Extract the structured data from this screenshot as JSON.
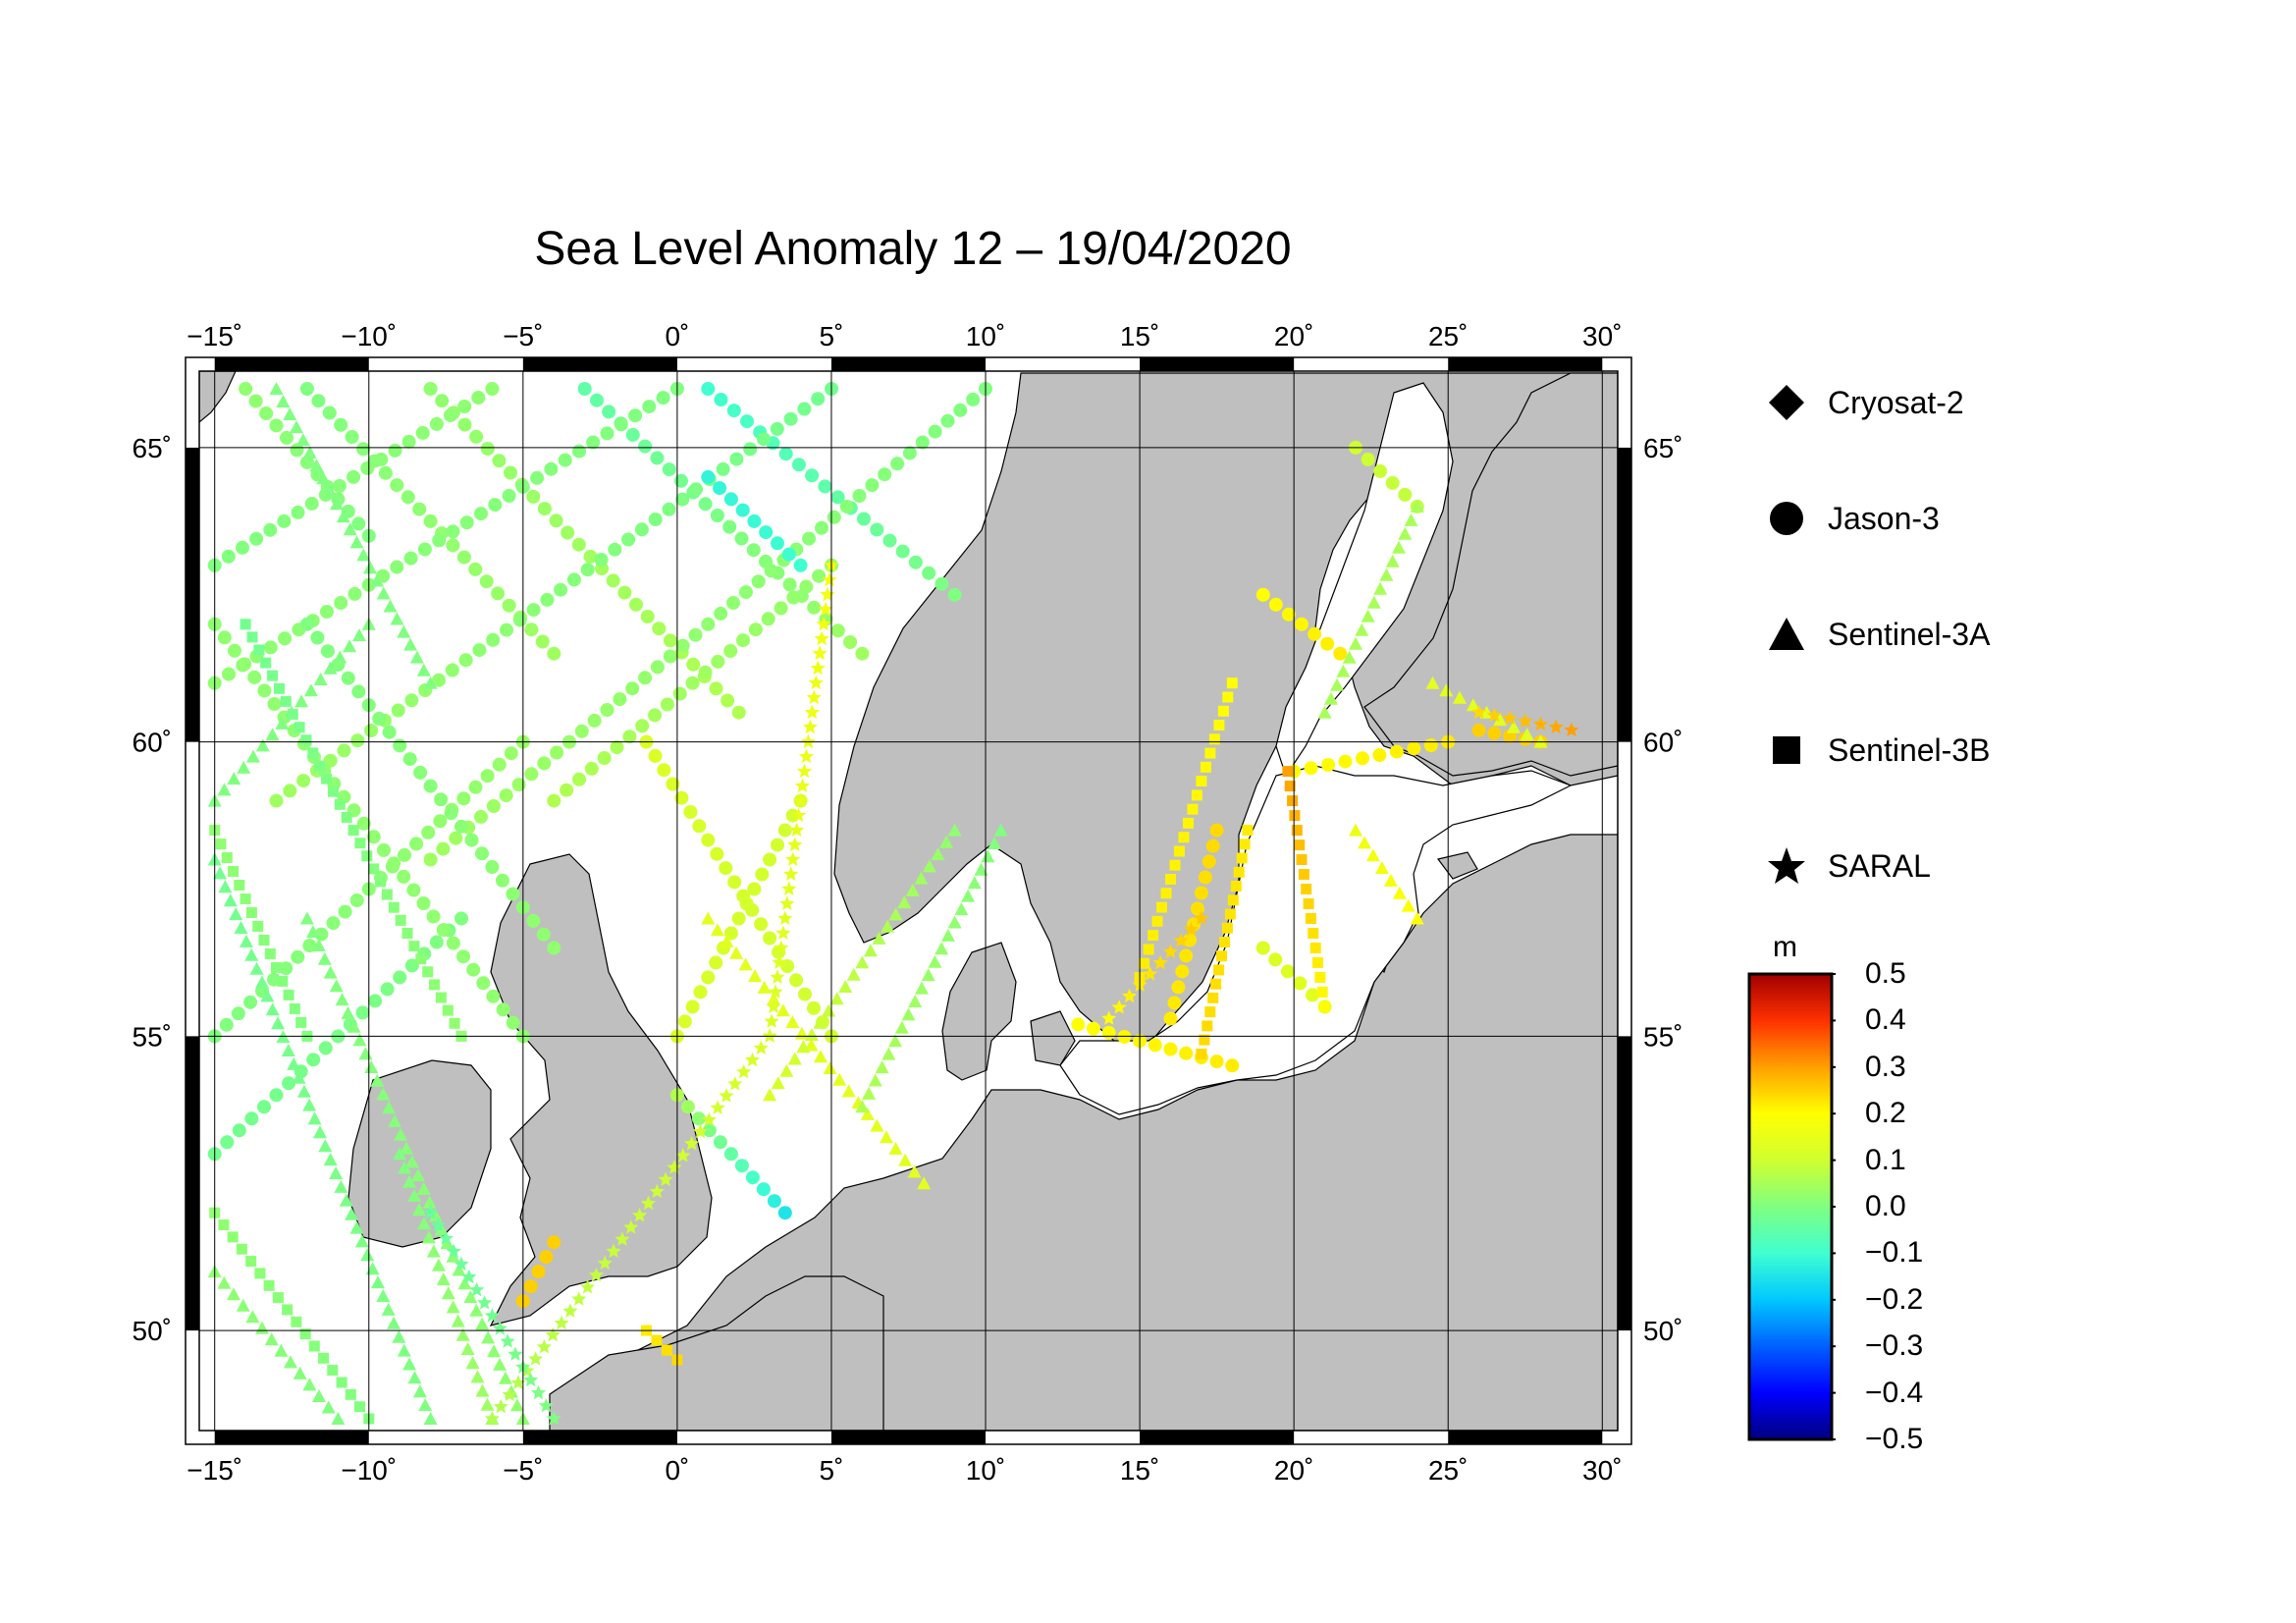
{
  "title": "Sea Level Anomaly 12 – 19/04/2020",
  "map": {
    "lon_min": -15.5,
    "lon_max": 30.5,
    "lat_min": 48.3,
    "lat_max": 66.3,
    "lon_ticks": [
      {
        "value": -15,
        "label": "−15˚"
      },
      {
        "value": -10,
        "label": "−10˚"
      },
      {
        "value": -5,
        "label": "−5˚"
      },
      {
        "value": 0,
        "label": "0˚"
      },
      {
        "value": 5,
        "label": "5˚"
      },
      {
        "value": 10,
        "label": "10˚"
      },
      {
        "value": 15,
        "label": "15˚"
      },
      {
        "value": 20,
        "label": "20˚"
      },
      {
        "value": 25,
        "label": "25˚"
      },
      {
        "value": 30,
        "label": "30˚"
      }
    ],
    "lat_ticks": [
      {
        "value": 50,
        "label": "50˚"
      },
      {
        "value": 55,
        "label": "55˚"
      },
      {
        "value": 60,
        "label": "60˚"
      },
      {
        "value": 65,
        "label": "65˚"
      }
    ],
    "land_color": "#bfbfbf",
    "sea_color": "#ffffff"
  },
  "legend": {
    "items": [
      {
        "label": "Cryosat-2",
        "icon": "diamond-icon"
      },
      {
        "label": "Jason-3",
        "icon": "circle-icon"
      },
      {
        "label": "Sentinel-3A",
        "icon": "triangle-icon"
      },
      {
        "label": "Sentinel-3B",
        "icon": "square-icon"
      },
      {
        "label": "SARAL",
        "icon": "star-icon"
      }
    ]
  },
  "colorbar": {
    "unit": "m",
    "min": -0.5,
    "max": 0.5,
    "ticks": [
      {
        "value": 0.5,
        "label": "0.5"
      },
      {
        "value": 0.4,
        "label": "0.4"
      },
      {
        "value": 0.3,
        "label": "0.3"
      },
      {
        "value": 0.2,
        "label": "0.2"
      },
      {
        "value": 0.1,
        "label": "0.1"
      },
      {
        "value": 0.0,
        "label": "0.0"
      },
      {
        "value": -0.1,
        "label": "−0.1"
      },
      {
        "value": -0.2,
        "label": "−0.2"
      },
      {
        "value": -0.3,
        "label": "−0.3"
      },
      {
        "value": -0.4,
        "label": "−0.4"
      },
      {
        "value": -0.5,
        "label": "−0.5"
      }
    ],
    "colors": [
      "#000080",
      "#0000ff",
      "#0060ff",
      "#00c8ff",
      "#40ffd0",
      "#80ff80",
      "#d0ff30",
      "#ffff00",
      "#ffa000",
      "#ff3000",
      "#a00000"
    ]
  },
  "tracks": [
    {
      "sat": "circle",
      "lon": [
        -14,
        -10
      ],
      "lat": [
        66,
        63.5
      ],
      "v": [
        0.02,
        0.0
      ]
    },
    {
      "sat": "circle",
      "lon": [
        -12,
        -4
      ],
      "lat": [
        66,
        61.5
      ],
      "v": [
        0.0,
        0.04
      ]
    },
    {
      "sat": "circle",
      "lon": [
        -8,
        2
      ],
      "lat": [
        66,
        60.5
      ],
      "v": [
        0.02,
        0.06
      ]
    },
    {
      "sat": "circle",
      "lon": [
        -3,
        6
      ],
      "lat": [
        66,
        61.5
      ],
      "v": [
        -0.05,
        0.04
      ]
    },
    {
      "sat": "circle",
      "lon": [
        1,
        9
      ],
      "lat": [
        66,
        62.5
      ],
      "v": [
        -0.1,
        0.0
      ]
    },
    {
      "sat": "circle",
      "lon": [
        -15,
        -6
      ],
      "lat": [
        63,
        66
      ],
      "v": [
        0.0,
        0.02
      ]
    },
    {
      "sat": "circle",
      "lon": [
        -15,
        0
      ],
      "lat": [
        61,
        66
      ],
      "v": [
        0.02,
        0.0
      ]
    },
    {
      "sat": "circle",
      "lon": [
        -13,
        5
      ],
      "lat": [
        59,
        66
      ],
      "v": [
        0.04,
        -0.02
      ]
    },
    {
      "sat": "circle",
      "lon": [
        -8,
        10
      ],
      "lat": [
        58,
        66
      ],
      "v": [
        0.04,
        0.0
      ]
    },
    {
      "sat": "circle",
      "lon": [
        -4,
        5
      ],
      "lat": [
        59,
        63
      ],
      "v": [
        0.06,
        0.02
      ]
    },
    {
      "sat": "circle",
      "lon": [
        -15,
        -5
      ],
      "lat": [
        55,
        60
      ],
      "v": [
        0.0,
        0.03
      ]
    },
    {
      "sat": "circle",
      "lon": [
        -15,
        -7
      ],
      "lat": [
        53,
        57
      ],
      "v": [
        -0.02,
        0.0
      ]
    },
    {
      "sat": "circle",
      "lon": [
        -15,
        -5
      ],
      "lat": [
        62,
        55
      ],
      "v": [
        0.02,
        0.02
      ]
    },
    {
      "sat": "circle",
      "lon": [
        -12,
        -4
      ],
      "lat": [
        62,
        56.5
      ],
      "v": [
        0.0,
        0.02
      ]
    },
    {
      "sat": "circle",
      "lon": [
        1,
        4
      ],
      "lat": [
        64.5,
        63
      ],
      "v": [
        -0.12,
        -0.1
      ]
    },
    {
      "sat": "circle",
      "lon": [
        -1,
        5
      ],
      "lat": [
        60,
        55
      ],
      "v": [
        0.12,
        0.1
      ]
    },
    {
      "sat": "circle",
      "lon": [
        4,
        0
      ],
      "lat": [
        59,
        55
      ],
      "v": [
        0.1,
        0.12
      ]
    },
    {
      "sat": "circle",
      "lon": [
        0,
        3.5
      ],
      "lat": [
        54,
        52
      ],
      "v": [
        0.06,
        -0.15
      ]
    },
    {
      "sat": "circle",
      "lon": [
        -4,
        -5
      ],
      "lat": [
        51.5,
        50.5
      ],
      "v": [
        0.25,
        0.25
      ]
    },
    {
      "sat": "circle",
      "lon": [
        19,
        21.5
      ],
      "lat": [
        62.5,
        61.5
      ],
      "v": [
        0.2,
        0.22
      ]
    },
    {
      "sat": "circle",
      "lon": [
        20,
        25
      ],
      "lat": [
        59.5,
        60
      ],
      "v": [
        0.2,
        0.22
      ]
    },
    {
      "sat": "circle",
      "lon": [
        16,
        17.5
      ],
      "lat": [
        55.3,
        58.5
      ],
      "v": [
        0.22,
        0.24
      ]
    },
    {
      "sat": "circle",
      "lon": [
        13,
        18
      ],
      "lat": [
        55.2,
        54.5
      ],
      "v": [
        0.2,
        0.22
      ]
    },
    {
      "sat": "circle",
      "lon": [
        19,
        21
      ],
      "lat": [
        56.5,
        55.5
      ],
      "v": [
        0.12,
        0.14
      ]
    },
    {
      "sat": "circle",
      "lon": [
        22,
        24
      ],
      "lat": [
        65,
        64
      ],
      "v": [
        0.1,
        0.08
      ]
    },
    {
      "sat": "circle",
      "lon": [
        26,
        28
      ],
      "lat": [
        60.2,
        60
      ],
      "v": [
        0.25,
        0.25
      ]
    },
    {
      "sat": "triangle",
      "lon": [
        -15,
        -8
      ],
      "lat": [
        58,
        48.5
      ],
      "v": [
        -0.02,
        0.0
      ]
    },
    {
      "sat": "triangle",
      "lon": [
        -12,
        -5
      ],
      "lat": [
        57,
        48.5
      ],
      "v": [
        0.0,
        0.02
      ]
    },
    {
      "sat": "triangle",
      "lon": [
        -9,
        -6
      ],
      "lat": [
        53,
        48.5
      ],
      "v": [
        0.0,
        0.04
      ]
    },
    {
      "sat": "triangle",
      "lon": [
        -15,
        -11
      ],
      "lat": [
        51,
        48.5
      ],
      "v": [
        0.02,
        0.0
      ]
    },
    {
      "sat": "triangle",
      "lon": [
        -15,
        -10
      ],
      "lat": [
        59,
        62
      ],
      "v": [
        0.0,
        0.0
      ]
    },
    {
      "sat": "triangle",
      "lon": [
        1,
        8
      ],
      "lat": [
        57,
        52.5
      ],
      "v": [
        0.14,
        0.14
      ]
    },
    {
      "sat": "triangle",
      "lon": [
        3,
        9
      ],
      "lat": [
        54,
        58.5
      ],
      "v": [
        0.12,
        0.02
      ]
    },
    {
      "sat": "triangle",
      "lon": [
        6,
        10.5
      ],
      "lat": [
        53.8,
        58.5
      ],
      "v": [
        0.06,
        0.0
      ]
    },
    {
      "sat": "triangle",
      "lon": [
        21,
        24
      ],
      "lat": [
        60.5,
        64
      ],
      "v": [
        0.05,
        0.05
      ]
    },
    {
      "sat": "triangle",
      "lon": [
        22,
        24
      ],
      "lat": [
        58.5,
        57
      ],
      "v": [
        0.16,
        0.2
      ]
    },
    {
      "sat": "triangle",
      "lon": [
        24.5,
        28
      ],
      "lat": [
        61,
        60
      ],
      "v": [
        0.14,
        0.14
      ]
    },
    {
      "sat": "triangle",
      "lon": [
        -13,
        -8
      ],
      "lat": [
        66,
        61
      ],
      "v": [
        0.0,
        0.0
      ]
    },
    {
      "sat": "square",
      "lon": [
        -15,
        -10
      ],
      "lat": [
        52,
        48.5
      ],
      "v": [
        0.02,
        0.0
      ]
    },
    {
      "sat": "square",
      "lon": [
        -14,
        -7
      ],
      "lat": [
        62,
        55
      ],
      "v": [
        -0.02,
        0.02
      ]
    },
    {
      "sat": "square",
      "lon": [
        -15,
        -12
      ],
      "lat": [
        58.5,
        55
      ],
      "v": [
        0.02,
        0.0
      ]
    },
    {
      "sat": "square",
      "lon": [
        18,
        15
      ],
      "lat": [
        61,
        56
      ],
      "v": [
        0.2,
        0.22
      ]
    },
    {
      "sat": "square",
      "lon": [
        19.8,
        21
      ],
      "lat": [
        59.5,
        55.5
      ],
      "v": [
        0.3,
        0.2
      ]
    },
    {
      "sat": "square",
      "lon": [
        18.5,
        17
      ],
      "lat": [
        58.5,
        54.7
      ],
      "v": [
        0.22,
        0.24
      ]
    },
    {
      "sat": "square",
      "lon": [
        -1,
        0
      ],
      "lat": [
        50,
        49.5
      ],
      "v": [
        0.22,
        0.24
      ]
    },
    {
      "sat": "star",
      "lon": [
        -6,
        3
      ],
      "lat": [
        48.5,
        55
      ],
      "v": [
        0.06,
        0.12
      ]
    },
    {
      "sat": "star",
      "lon": [
        3,
        5
      ],
      "lat": [
        55,
        63
      ],
      "v": [
        0.12,
        0.18
      ]
    },
    {
      "sat": "star",
      "lon": [
        -8,
        -4
      ],
      "lat": [
        52,
        48.5
      ],
      "v": [
        -0.04,
        0.0
      ]
    },
    {
      "sat": "star",
      "lon": [
        14,
        17
      ],
      "lat": [
        55.3,
        57
      ],
      "v": [
        0.2,
        0.26
      ]
    },
    {
      "sat": "star",
      "lon": [
        26,
        29
      ],
      "lat": [
        60.5,
        60.2
      ],
      "v": [
        0.24,
        0.3
      ]
    }
  ]
}
